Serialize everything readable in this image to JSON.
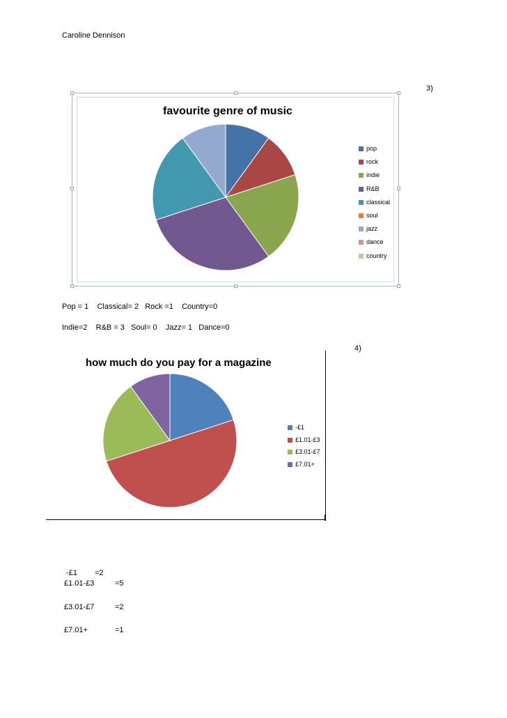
{
  "author": "Caroline Dennison",
  "question3_label": "3)",
  "question4_label": "4)",
  "chart1_counts_line1": "Pop = 1    Classical= 2   Rock =1    Country=0",
  "chart1_counts_line2": "Indie=2    R&B = 3   Soul= 0    Jazz= 1   Dance=0",
  "chart2_counts": [
    {
      "label": " -£1",
      "value": "=2"
    },
    {
      "label": "£1.01-£3",
      "value": "=5"
    },
    {
      "label": "£3.01-£7",
      "value": "=2"
    },
    {
      "label": "£7.01+",
      "value": "=1"
    }
  ],
  "chart_data": [
    {
      "type": "pie",
      "title": "favourite genre of music",
      "categories": [
        "pop",
        "rock",
        "indie",
        "R&B",
        "classical",
        "soul",
        "jazz",
        "dance",
        "country"
      ],
      "values": [
        1,
        1,
        2,
        3,
        2,
        0,
        1,
        0,
        0
      ],
      "colors": [
        "#4572a7",
        "#aa4643",
        "#89a54e",
        "#71588f",
        "#4198af",
        "#db843d",
        "#93a9cf",
        "#d19392",
        "#b9cd96"
      ],
      "legend": "right"
    },
    {
      "type": "pie",
      "title": "how much do you pay for a magazine",
      "categories": [
        "-£1",
        "£1.01-£3",
        "£3.01-£7",
        "£7.01+"
      ],
      "values": [
        2,
        5,
        2,
        1
      ],
      "colors": [
        "#4f81bd",
        "#c0504d",
        "#9bbb59",
        "#8064a2"
      ],
      "legend": "right"
    }
  ]
}
